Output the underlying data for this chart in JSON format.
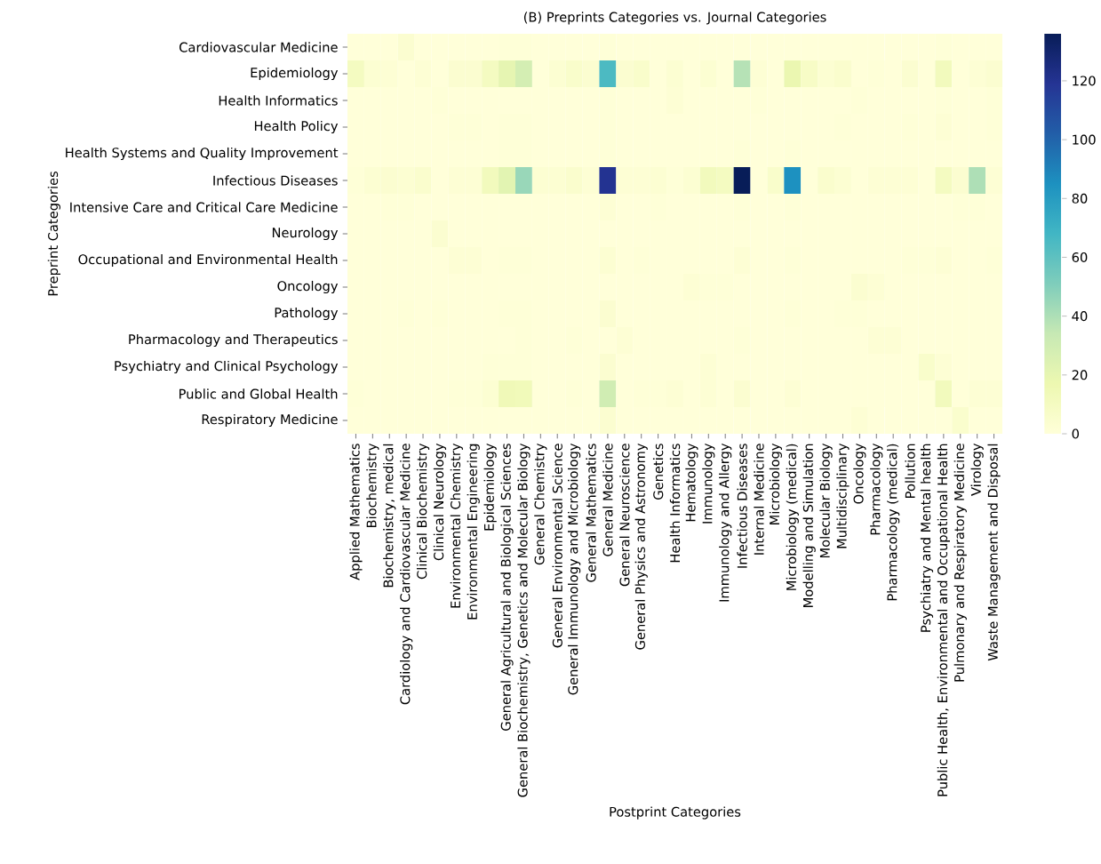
{
  "chart_data": {
    "type": "heatmap",
    "title": "(B) Preprints Categories vs. Journal Categories",
    "xlabel": "Postprint Categories",
    "ylabel": "Preprint Categories",
    "categories": [
      "Applied Mathematics",
      "Biochemistry",
      "Biochemistry, medical",
      "Cardiology and Cardiovascular Medicine",
      "Clinical Biochemistry",
      "Clinical Neurology",
      "Environmental Chemistry",
      "Environmental Engineering",
      "Epidemiology",
      "General Agricultural and Biological Sciences",
      "General Biochemistry, Genetics and Molecular Biology",
      "General Chemistry",
      "General Environmental Science",
      "General Immunology and Microbiology",
      "General Mathematics",
      "General Medicine",
      "General Neuroscience",
      "General Physics and Astronomy",
      "Genetics",
      "Health Informatics",
      "Hematology",
      "Immunology",
      "Immunology and Allergy",
      "Infectious Diseases",
      "Internal Medicine",
      "Microbiology",
      "Microbiology (medical)",
      "Modelling and Simulation",
      "Molecular Biology",
      "Multidisciplinary",
      "Oncology",
      "Pharmacology",
      "Pharmacology (medical)",
      "Pollution",
      "Psychiatry and Mental health",
      "Public Health, Environmental and Occupational Health",
      "Pulmonary and Respiratory Medicine",
      "Virology",
      "Waste Management and Disposal"
    ],
    "y_categories": [
      "Cardiovascular Medicine",
      "Epidemiology",
      "Health Informatics",
      "Health Policy",
      "Health Systems and Quality Improvement",
      "Infectious Diseases",
      "Intensive Care and Critical Care Medicine",
      "Neurology",
      "Occupational and Environmental Health",
      "Oncology",
      "Pathology",
      "Pharmacology and Therapeutics",
      "Psychiatry and Clinical Psychology",
      "Public and Global Health",
      "Respiratory Medicine"
    ],
    "cells": [
      [
        0,
        0,
        0,
        4,
        0,
        0,
        0,
        0,
        0,
        1,
        1,
        0,
        0,
        0,
        0,
        1,
        0,
        0,
        0,
        0,
        0,
        0,
        0,
        0,
        0,
        0,
        0,
        0,
        0,
        0,
        0,
        0,
        0,
        0,
        0,
        1,
        0,
        0,
        0
      ],
      [
        10,
        3,
        2,
        0,
        2,
        0,
        4,
        4,
        10,
        20,
        28,
        0,
        3,
        6,
        4,
        65,
        4,
        6,
        0,
        3,
        0,
        3,
        0,
        38,
        2,
        0,
        18,
        8,
        3,
        5,
        0,
        1,
        0,
        4,
        0,
        12,
        0,
        2,
        4
      ],
      [
        0,
        0,
        0,
        0,
        0,
        1,
        0,
        0,
        0,
        0,
        0,
        0,
        0,
        0,
        0,
        1,
        0,
        0,
        0,
        2,
        0,
        0,
        0,
        0,
        1,
        0,
        0,
        0,
        0,
        0,
        1,
        0,
        0,
        0,
        0,
        1,
        0,
        0,
        1
      ],
      [
        0,
        0,
        0,
        0,
        0,
        0,
        1,
        1,
        0,
        1,
        1,
        0,
        0,
        0,
        0,
        1,
        0,
        0,
        0,
        0,
        0,
        0,
        0,
        0,
        0,
        0,
        0,
        0,
        0,
        1,
        0,
        0,
        0,
        1,
        0,
        2,
        0,
        0,
        1
      ],
      [
        0,
        0,
        0,
        0,
        0,
        0,
        0,
        0,
        0,
        1,
        1,
        0,
        0,
        0,
        0,
        1,
        0,
        0,
        0,
        0,
        0,
        0,
        0,
        1,
        0,
        0,
        1,
        0,
        0,
        0,
        0,
        0,
        0,
        0,
        0,
        0,
        0,
        0,
        0
      ],
      [
        1,
        3,
        4,
        3,
        5,
        0,
        2,
        2,
        12,
        22,
        45,
        3,
        3,
        5,
        2,
        120,
        2,
        2,
        3,
        1,
        3,
        12,
        10,
        136,
        0,
        6,
        85,
        0,
        5,
        3,
        0,
        2,
        2,
        2,
        0,
        10,
        4,
        40,
        2
      ],
      [
        0,
        0,
        1,
        1,
        0,
        0,
        0,
        0,
        0,
        0,
        0,
        0,
        0,
        0,
        0,
        2,
        0,
        0,
        1,
        0,
        0,
        0,
        0,
        1,
        0,
        0,
        1,
        0,
        0,
        0,
        0,
        0,
        0,
        0,
        0,
        0,
        1,
        1,
        0
      ],
      [
        0,
        0,
        0,
        0,
        0,
        4,
        0,
        0,
        0,
        0,
        0,
        0,
        0,
        0,
        0,
        0,
        0,
        0,
        0,
        0,
        0,
        0,
        0,
        0,
        0,
        0,
        0,
        0,
        0,
        0,
        0,
        0,
        0,
        0,
        0,
        0,
        0,
        0,
        0
      ],
      [
        0,
        0,
        0,
        0,
        0,
        0,
        2,
        2,
        0,
        1,
        1,
        0,
        0,
        0,
        0,
        3,
        0,
        1,
        0,
        0,
        0,
        0,
        0,
        2,
        0,
        0,
        1,
        0,
        0,
        0,
        0,
        0,
        0,
        1,
        1,
        2,
        0,
        0,
        1
      ],
      [
        0,
        0,
        0,
        0,
        0,
        0,
        0,
        0,
        0,
        0,
        0,
        0,
        0,
        0,
        0,
        0,
        0,
        0,
        0,
        0,
        2,
        1,
        1,
        0,
        0,
        0,
        0,
        0,
        0,
        0,
        4,
        2,
        0,
        0,
        0,
        0,
        0,
        0,
        0
      ],
      [
        0,
        0,
        0,
        1,
        0,
        1,
        0,
        0,
        0,
        1,
        1,
        0,
        0,
        0,
        0,
        4,
        0,
        0,
        0,
        0,
        0,
        0,
        0,
        0,
        0,
        0,
        1,
        0,
        0,
        1,
        1,
        0,
        0,
        0,
        0,
        0,
        0,
        0,
        0
      ],
      [
        0,
        0,
        0,
        0,
        0,
        0,
        0,
        0,
        0,
        0,
        1,
        0,
        0,
        1,
        0,
        0,
        2,
        0,
        0,
        0,
        0,
        0,
        0,
        1,
        0,
        0,
        0,
        0,
        0,
        0,
        0,
        2,
        2,
        0,
        0,
        0,
        0,
        0,
        0
      ],
      [
        0,
        0,
        0,
        0,
        0,
        0,
        0,
        0,
        1,
        1,
        1,
        0,
        0,
        0,
        0,
        4,
        0,
        0,
        0,
        0,
        0,
        2,
        0,
        0,
        0,
        0,
        0,
        0,
        0,
        0,
        0,
        0,
        0,
        0,
        6,
        2,
        0,
        0,
        0
      ],
      [
        1,
        0,
        0,
        0,
        0,
        0,
        1,
        1,
        3,
        14,
        13,
        0,
        0,
        1,
        0,
        30,
        0,
        1,
        1,
        2,
        0,
        2,
        0,
        4,
        0,
        0,
        2,
        0,
        0,
        0,
        0,
        0,
        0,
        0,
        0,
        12,
        0,
        2,
        2
      ],
      [
        0,
        0,
        0,
        0,
        0,
        0,
        0,
        0,
        0,
        0,
        0,
        0,
        0,
        0,
        0,
        4,
        0,
        0,
        0,
        0,
        0,
        0,
        0,
        0,
        0,
        0,
        0,
        0,
        0,
        0,
        2,
        0,
        0,
        0,
        0,
        0,
        5,
        0,
        0
      ]
    ],
    "clim": [
      0,
      136
    ],
    "cticks": [
      0,
      20,
      40,
      60,
      80,
      100,
      120
    ]
  }
}
